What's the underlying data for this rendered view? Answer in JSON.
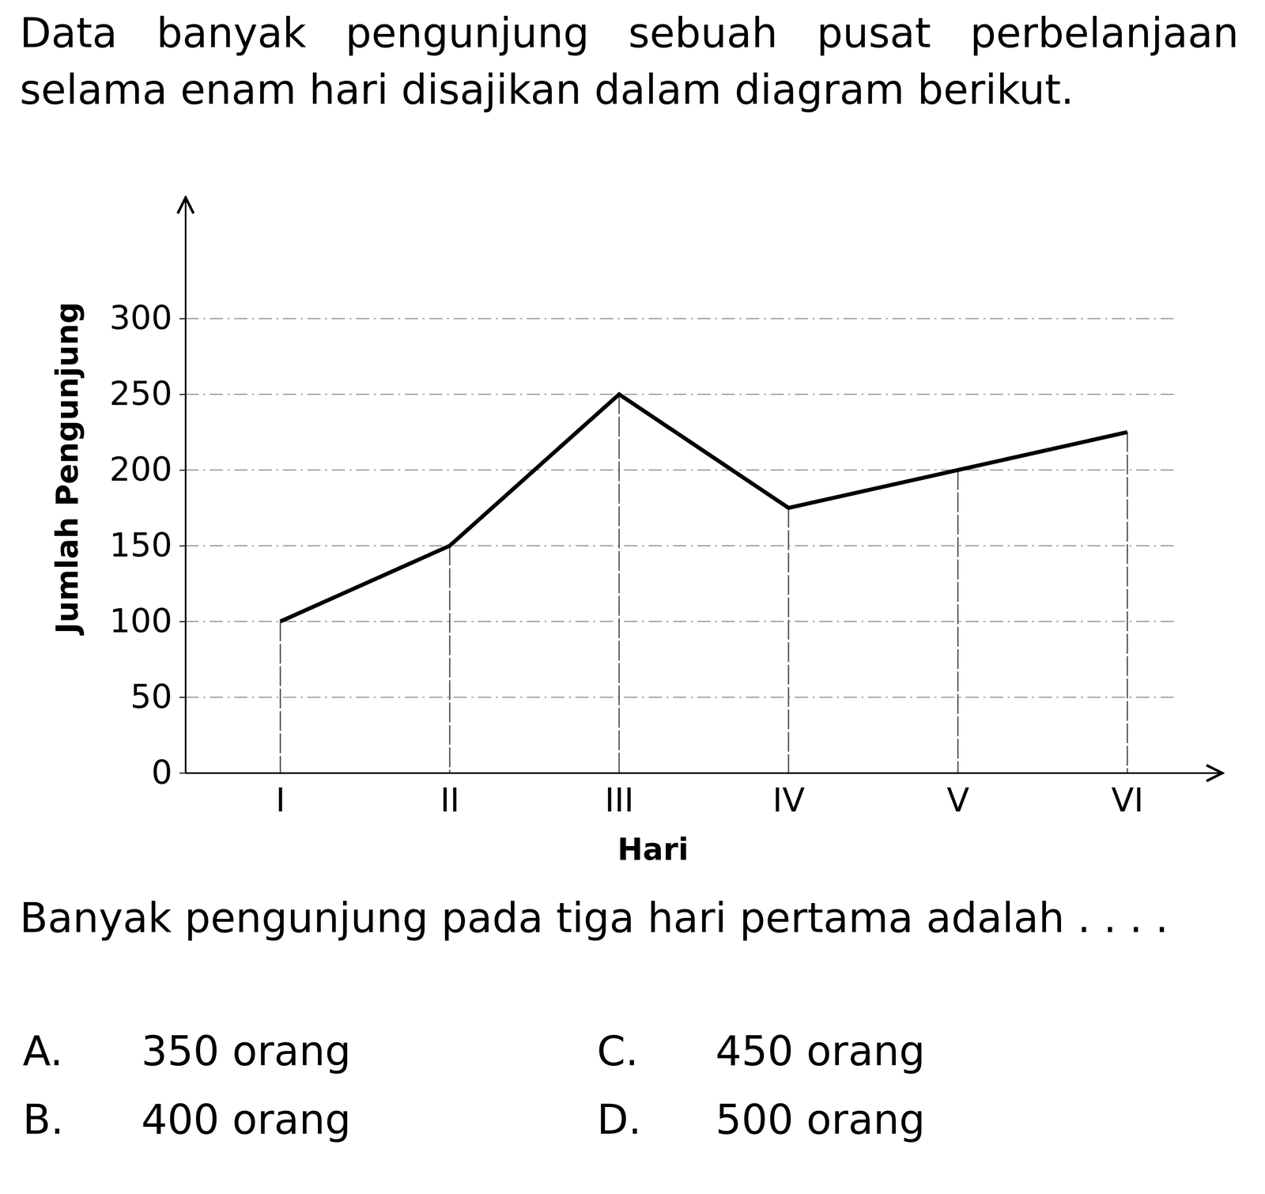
{
  "question": {
    "intro": "Data banyak pengunjung sebuah pusat perbelanjaan selama enam hari disajikan dalam diagram berikut.",
    "prompt": "Banyak pengunjung pada tiga hari pertama adalah . . . .",
    "options": [
      {
        "letter": "A.",
        "text": "350 orang"
      },
      {
        "letter": "B.",
        "text": "400 orang"
      },
      {
        "letter": "C.",
        "text": "450 orang"
      },
      {
        "letter": "D.",
        "text": "500 orang"
      }
    ]
  },
  "chart_data": {
    "type": "line",
    "x_label": "Hari",
    "y_label": "Jumlah Pengunjung",
    "categories": [
      "I",
      "II",
      "III",
      "IV",
      "V",
      "VI"
    ],
    "values": [
      100,
      150,
      250,
      175,
      200,
      225
    ],
    "color": "#000000",
    "ylim": [
      0,
      380
    ],
    "yticks": [
      0,
      50,
      100,
      150,
      200,
      250,
      300
    ],
    "grid": true
  }
}
